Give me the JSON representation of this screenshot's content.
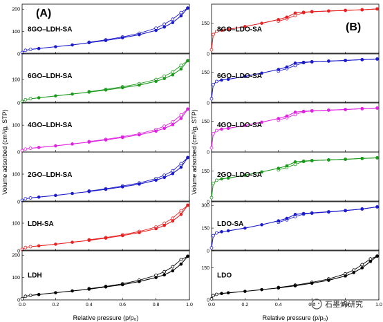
{
  "chart_data": [
    {
      "type": "line",
      "panel_label": "(A)",
      "xlabel": "Relative pressure (p/p₀)",
      "ylabel": "Volume adsorbed (cm³/g, STP)",
      "xlim": [
        0.0,
        1.0
      ],
      "x_ticks": [
        "0.0",
        "0.2",
        "0.4",
        "0.6",
        "0.8",
        "1.0"
      ],
      "subplots": [
        {
          "name": "8GO–LDH-SA",
          "color": "#1a1acc",
          "ylim": [
            0,
            210
          ],
          "y_ticks": [
            0,
            100,
            200
          ],
          "x": [
            0.0,
            0.02,
            0.05,
            0.1,
            0.2,
            0.3,
            0.4,
            0.5,
            0.6,
            0.7,
            0.8,
            0.85,
            0.9,
            0.95,
            0.99
          ],
          "adsorption": [
            6,
            16,
            20,
            24,
            32,
            40,
            50,
            60,
            72,
            86,
            105,
            120,
            140,
            170,
            205
          ],
          "desorption": [
            null,
            null,
            null,
            null,
            null,
            null,
            52,
            63,
            76,
            92,
            115,
            133,
            155,
            185,
            205
          ]
        },
        {
          "name": "6GO–LDH-SA",
          "color": "#1a9a1a",
          "ylim": [
            0,
            200
          ],
          "y_ticks": [
            0,
            100
          ],
          "x": [
            0.0,
            0.02,
            0.05,
            0.1,
            0.2,
            0.3,
            0.4,
            0.5,
            0.6,
            0.7,
            0.8,
            0.85,
            0.9,
            0.95,
            0.99
          ],
          "adsorption": [
            6,
            14,
            18,
            22,
            30,
            38,
            46,
            55,
            65,
            76,
            92,
            104,
            120,
            145,
            180
          ],
          "desorption": [
            null,
            null,
            null,
            null,
            null,
            null,
            48,
            58,
            69,
            82,
            100,
            114,
            132,
            160,
            180
          ]
        },
        {
          "name": "4GO–LDH-SA",
          "color": "#e020e0",
          "ylim": [
            0,
            175
          ],
          "y_ticks": [
            0,
            100
          ],
          "x": [
            0.0,
            0.02,
            0.05,
            0.1,
            0.2,
            0.3,
            0.4,
            0.5,
            0.6,
            0.7,
            0.8,
            0.85,
            0.9,
            0.95,
            0.99
          ],
          "adsorption": [
            5,
            11,
            14,
            17,
            23,
            30,
            37,
            45,
            54,
            64,
            78,
            88,
            102,
            125,
            160
          ],
          "desorption": [
            null,
            null,
            null,
            null,
            null,
            null,
            39,
            47,
            57,
            68,
            84,
            96,
            112,
            138,
            160
          ]
        },
        {
          "name": "2GO–LDH-SA",
          "color": "#1a1acc",
          "ylim": [
            0,
            170
          ],
          "y_ticks": [
            0,
            100
          ],
          "x": [
            0.0,
            0.02,
            0.05,
            0.1,
            0.2,
            0.3,
            0.4,
            0.5,
            0.6,
            0.7,
            0.8,
            0.85,
            0.9,
            0.95,
            0.99
          ],
          "adsorption": [
            5,
            11,
            14,
            17,
            23,
            30,
            37,
            45,
            54,
            64,
            78,
            88,
            102,
            125,
            160
          ],
          "desorption": [
            null,
            null,
            null,
            null,
            null,
            null,
            39,
            47,
            57,
            68,
            84,
            96,
            112,
            138,
            160
          ]
        },
        {
          "name": "LDH-SA",
          "color": "#e82020",
          "ylim": [
            0,
            170
          ],
          "y_ticks": [
            0,
            100
          ],
          "x": [
            0.0,
            0.02,
            0.05,
            0.1,
            0.2,
            0.3,
            0.4,
            0.5,
            0.6,
            0.7,
            0.8,
            0.85,
            0.9,
            0.95,
            0.99
          ],
          "adsorption": [
            5,
            12,
            15,
            18,
            24,
            31,
            38,
            46,
            55,
            66,
            80,
            92,
            108,
            132,
            165
          ],
          "desorption": [
            null,
            null,
            null,
            null,
            null,
            null,
            40,
            48,
            58,
            70,
            86,
            100,
            118,
            145,
            165
          ]
        },
        {
          "name": "LDH",
          "color": "#000000",
          "ylim": [
            0,
            210
          ],
          "y_ticks": [
            0,
            100,
            200
          ],
          "x": [
            0.0,
            0.02,
            0.05,
            0.1,
            0.2,
            0.3,
            0.4,
            0.5,
            0.6,
            0.7,
            0.8,
            0.85,
            0.9,
            0.95,
            0.99
          ],
          "adsorption": [
            5,
            16,
            20,
            24,
            32,
            40,
            48,
            58,
            68,
            82,
            100,
            112,
            130,
            160,
            195
          ],
          "desorption": [
            null,
            null,
            null,
            null,
            null,
            null,
            50,
            60,
            72,
            88,
            110,
            126,
            148,
            180,
            195
          ]
        }
      ]
    },
    {
      "type": "line",
      "panel_label": "(B)",
      "xlabel": "Relative pressure (p/p₀)",
      "ylabel": "Volume adsorbed (cm³/g, STP)",
      "xlim": [
        0.0,
        1.0
      ],
      "x_ticks": [
        "0.0",
        "0.2",
        "0.4",
        "0.6",
        "0.8",
        "1.0"
      ],
      "subplots": [
        {
          "name": "8GO–LDO-SA",
          "color": "#e82020",
          "ylim": [
            0,
            230
          ],
          "y_ticks": [
            0,
            150
          ],
          "x": [
            0.0,
            0.01,
            0.03,
            0.06,
            0.1,
            0.2,
            0.3,
            0.4,
            0.45,
            0.5,
            0.55,
            0.6,
            0.7,
            0.8,
            0.9,
            0.99
          ],
          "adsorption": [
            20,
            95,
            110,
            116,
            120,
            134,
            150,
            168,
            180,
            200,
            204,
            207,
            210,
            213,
            216,
            220
          ],
          "desorption": [
            null,
            null,
            null,
            null,
            null,
            null,
            null,
            160,
            172,
            188,
            202,
            206,
            210,
            213,
            216,
            220
          ]
        },
        {
          "name": "6GO–LDO-SA",
          "color": "#1a1acc",
          "ylim": [
            0,
            230
          ],
          "y_ticks": [
            0,
            150
          ],
          "x": [
            0.0,
            0.01,
            0.03,
            0.06,
            0.1,
            0.2,
            0.3,
            0.4,
            0.45,
            0.5,
            0.55,
            0.6,
            0.7,
            0.8,
            0.9,
            0.99
          ],
          "adsorption": [
            20,
            90,
            105,
            112,
            116,
            130,
            146,
            164,
            176,
            195,
            199,
            202,
            205,
            208,
            212,
            215
          ],
          "desorption": [
            null,
            null,
            null,
            null,
            null,
            null,
            null,
            156,
            168,
            183,
            197,
            201,
            205,
            208,
            212,
            215
          ]
        },
        {
          "name": "4GO–LDO-SA",
          "color": "#e020e0",
          "ylim": [
            0,
            230
          ],
          "y_ticks": [
            0,
            150
          ],
          "x": [
            0.0,
            0.01,
            0.03,
            0.06,
            0.1,
            0.2,
            0.3,
            0.4,
            0.45,
            0.5,
            0.55,
            0.6,
            0.7,
            0.8,
            0.9,
            0.99
          ],
          "adsorption": [
            20,
            90,
            105,
            112,
            116,
            130,
            146,
            164,
            176,
            195,
            199,
            202,
            205,
            208,
            212,
            215
          ],
          "desorption": [
            null,
            null,
            null,
            null,
            null,
            null,
            null,
            156,
            168,
            183,
            197,
            201,
            205,
            208,
            212,
            215
          ]
        },
        {
          "name": "2GO–LDO-SA",
          "color": "#1a9a1a",
          "ylim": [
            0,
            230
          ],
          "y_ticks": [
            0,
            150
          ],
          "x": [
            0.0,
            0.01,
            0.03,
            0.06,
            0.1,
            0.2,
            0.3,
            0.4,
            0.45,
            0.5,
            0.55,
            0.6,
            0.7,
            0.8,
            0.9,
            0.99
          ],
          "adsorption": [
            20,
            90,
            105,
            112,
            116,
            130,
            146,
            164,
            176,
            195,
            199,
            202,
            205,
            208,
            212,
            215
          ],
          "desorption": [
            null,
            null,
            null,
            null,
            null,
            null,
            null,
            156,
            168,
            183,
            197,
            201,
            205,
            208,
            212,
            215
          ]
        },
        {
          "name": "LDO-SA",
          "color": "#1a1acc",
          "ylim": [
            0,
            310
          ],
          "y_ticks": [
            0,
            150,
            300
          ],
          "x": [
            0.0,
            0.01,
            0.03,
            0.06,
            0.1,
            0.2,
            0.3,
            0.4,
            0.45,
            0.5,
            0.55,
            0.6,
            0.7,
            0.8,
            0.9,
            0.99
          ],
          "adsorption": [
            20,
            100,
            118,
            126,
            132,
            150,
            172,
            198,
            214,
            240,
            246,
            250,
            258,
            266,
            276,
            290
          ],
          "desorption": [
            null,
            null,
            null,
            null,
            null,
            null,
            null,
            188,
            204,
            226,
            242,
            248,
            256,
            265,
            276,
            290
          ]
        },
        {
          "name": "LDO",
          "color": "#000000",
          "ylim": [
            0,
            220
          ],
          "y_ticks": [
            0,
            150
          ],
          "x": [
            0.0,
            0.01,
            0.03,
            0.06,
            0.1,
            0.2,
            0.3,
            0.4,
            0.5,
            0.6,
            0.7,
            0.8,
            0.85,
            0.9,
            0.95,
            0.99
          ],
          "adsorption": [
            5,
            20,
            26,
            30,
            33,
            40,
            48,
            56,
            66,
            78,
            92,
            112,
            128,
            150,
            180,
            205
          ],
          "desorption": [
            null,
            null,
            null,
            null,
            null,
            null,
            null,
            58,
            69,
            82,
            98,
            122,
            140,
            165,
            192,
            205
          ]
        }
      ]
    }
  ],
  "watermark": "石墨烯研究"
}
